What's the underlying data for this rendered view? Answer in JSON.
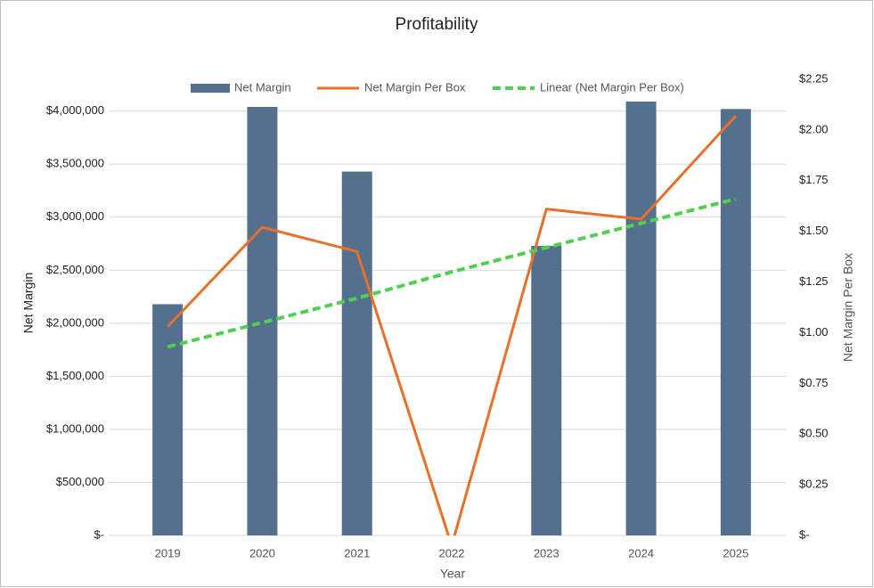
{
  "chart_data": {
    "type": "combo",
    "title": "Profitability",
    "categories": [
      "2019",
      "2020",
      "2021",
      "2022",
      "2023",
      "2024",
      "2025"
    ],
    "x_label": "Year",
    "y_label": "Net Margin",
    "y2_label": "Net Margin Per Box",
    "series": [
      {
        "name": "Net Margin",
        "type": "bar",
        "color": "#53718f",
        "values": [
          2180000,
          4040000,
          3430000,
          null,
          2730000,
          4090000,
          4020000
        ]
      },
      {
        "name": "Net Margin Per Box",
        "type": "line",
        "axis": "y2",
        "color": "#e8702a",
        "values": [
          1.03,
          1.52,
          1.4,
          -0.05,
          1.61,
          1.56,
          2.07
        ]
      },
      {
        "name": "Linear (Net Margin Per Box)",
        "type": "line",
        "dashed": true,
        "axis": "y2",
        "color": "#4fd14f",
        "values": [
          0.93,
          1.05,
          1.17,
          1.3,
          1.42,
          1.54,
          1.66
        ]
      }
    ],
    "ylim": [
      0,
      4300000
    ],
    "yticks": [
      {
        "value": 0,
        "label": "$-"
      },
      {
        "value": 500000,
        "label": "$500,000"
      },
      {
        "value": 1000000,
        "label": "$1,000,000"
      },
      {
        "value": 1500000,
        "label": "$1,500,000"
      },
      {
        "value": 2000000,
        "label": "$2,000,000"
      },
      {
        "value": 2500000,
        "label": "$2,500,000"
      },
      {
        "value": 3000000,
        "label": "$3,000,000"
      },
      {
        "value": 3500000,
        "label": "$3,500,000"
      },
      {
        "value": 4000000,
        "label": "$4,000,000"
      }
    ],
    "y2lim": [
      0,
      2.25
    ],
    "y2ticks": [
      {
        "value": 0,
        "label": "$-"
      },
      {
        "value": 0.25,
        "label": "$0.25"
      },
      {
        "value": 0.5,
        "label": "$0.50"
      },
      {
        "value": 0.75,
        "label": "$0.75"
      },
      {
        "value": 1,
        "label": "$1.00"
      },
      {
        "value": 1.25,
        "label": "$1.25"
      },
      {
        "value": 1.5,
        "label": "$1.50"
      },
      {
        "value": 1.75,
        "label": "$1.75"
      },
      {
        "value": 2,
        "label": "$2.00"
      },
      {
        "value": 2.25,
        "label": "$2.25"
      }
    ],
    "grid": true,
    "legend": "top"
  }
}
